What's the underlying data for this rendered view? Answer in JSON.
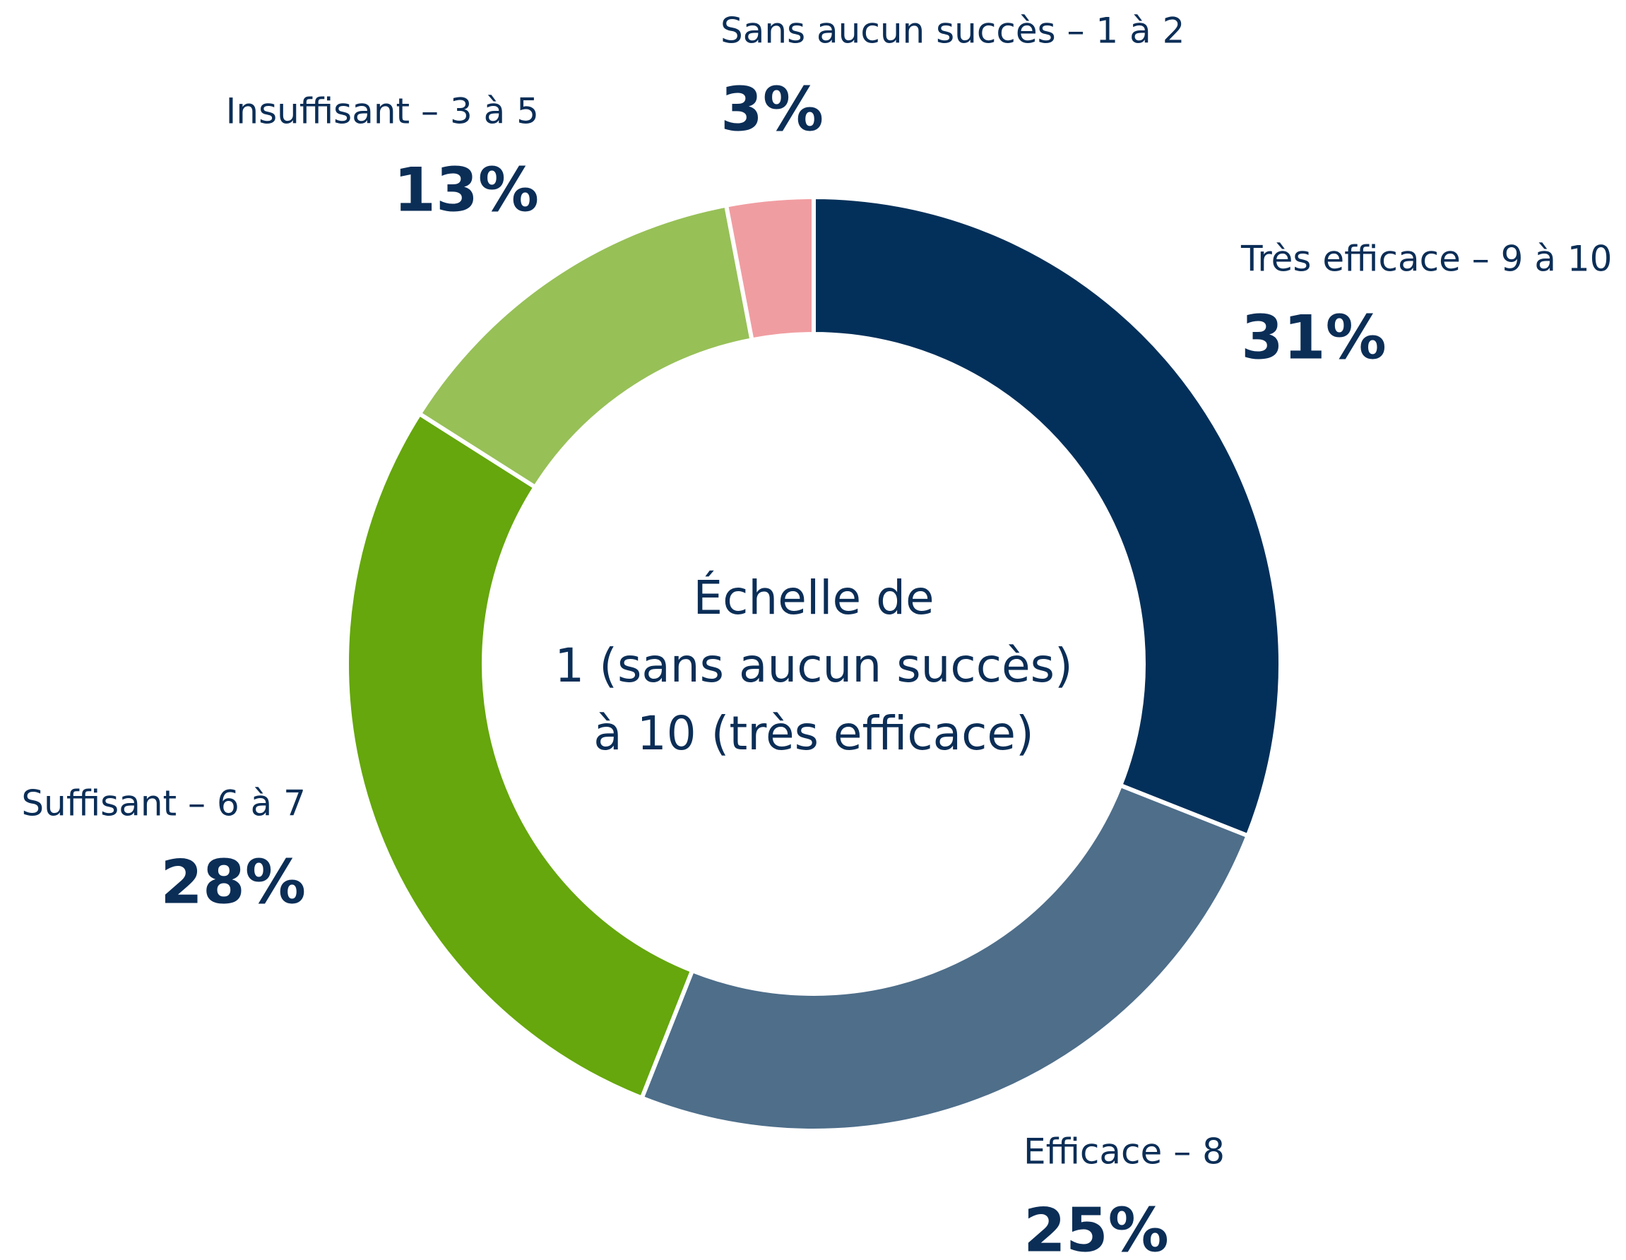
{
  "chart_data": {
    "type": "donut",
    "categories": [
      "Très efficace – 9 à 10",
      "Efficace – 8",
      "Suffisant – 6 à 7",
      "Insuffisant – 3 à 5",
      "Sans aucun succès – 1 à 2"
    ],
    "values": [
      31,
      25,
      28,
      13,
      3
    ],
    "value_labels": [
      "31%",
      "25%",
      "28%",
      "13%",
      "3%"
    ],
    "colors": [
      "#03305a",
      "#4e6e8a",
      "#65a70c",
      "#97c057",
      "#f09da1"
    ],
    "center_label": [
      "Échelle de",
      "1 (sans aucun succès)",
      "à 10 (très efficace)"
    ]
  }
}
